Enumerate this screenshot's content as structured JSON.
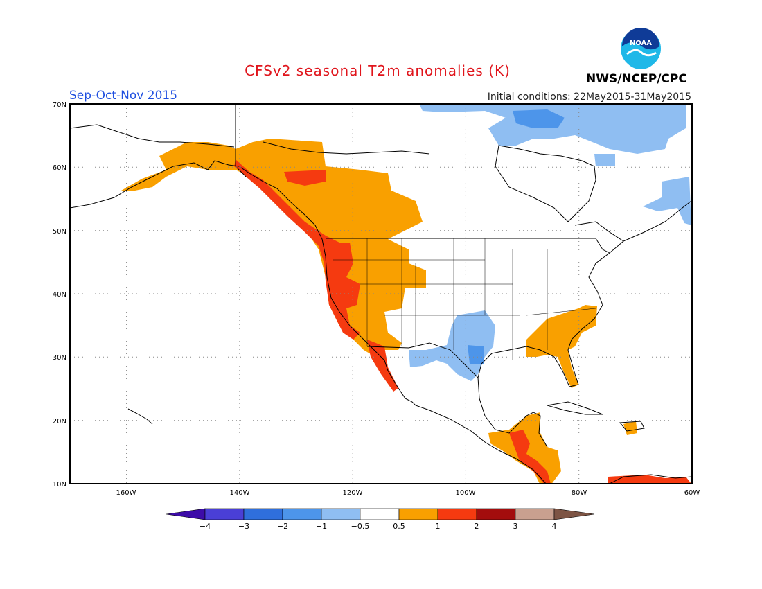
{
  "header": {
    "title": "CFSv2 seasonal T2m anomalies (K)",
    "season": "Sep-Oct-Nov 2015",
    "initial_conditions": "Initial conditions: 22May2015-31May2015",
    "agency": "NWS/NCEP/CPC",
    "logo_text": "NOAA"
  },
  "axes": {
    "lat_labels": [
      "70N",
      "60N",
      "50N",
      "40N",
      "30N",
      "20N",
      "10N"
    ],
    "lon_labels": [
      "160W",
      "140W",
      "120W",
      "100W",
      "80W",
      "60W"
    ],
    "lat_range": [
      10,
      70
    ],
    "lon_range": [
      -170,
      -60
    ],
    "grid": "dotted"
  },
  "colorbar": {
    "labels": [
      "-4",
      "-3",
      "-2",
      "-1",
      "-0.5",
      "0.5",
      "1",
      "2",
      "3",
      "4"
    ],
    "colors": [
      "#3d0ca8",
      "#4a3fd6",
      "#2f6fdc",
      "#4d95ea",
      "#8fbef2",
      "#ffffff",
      "#f9a000",
      "#f53a10",
      "#a30d0d",
      "#c9a08f",
      "#7d5444"
    ]
  },
  "chart_data": {
    "type": "heatmap",
    "title": "CFSv2 seasonal T2m anomalies (K)",
    "subtitle": "Sep-Oct-Nov 2015",
    "units": "K",
    "regions": [
      {
        "area": "Alaska and western Canada",
        "anomaly_range": [
          0.5,
          1
        ]
      },
      {
        "area": "Pacific Northwest and California coast",
        "anomaly_range": [
          1,
          2
        ]
      },
      {
        "area": "Great Basin and Intermountain West",
        "anomaly_range": [
          0.5,
          1
        ]
      },
      {
        "area": "Southeast US and Florida",
        "anomaly_range": [
          0.5,
          1
        ]
      },
      {
        "area": "Central America",
        "anomaly_range": [
          1,
          2
        ]
      },
      {
        "area": "Texas and southern Plains",
        "anomaly_range": [
          -1,
          -0.5
        ]
      },
      {
        "area": "Canadian Arctic and Labrador",
        "anomaly_range": [
          -1,
          -0.5
        ]
      },
      {
        "area": "Northern South America coast",
        "anomaly_range": [
          1,
          2
        ]
      }
    ]
  }
}
